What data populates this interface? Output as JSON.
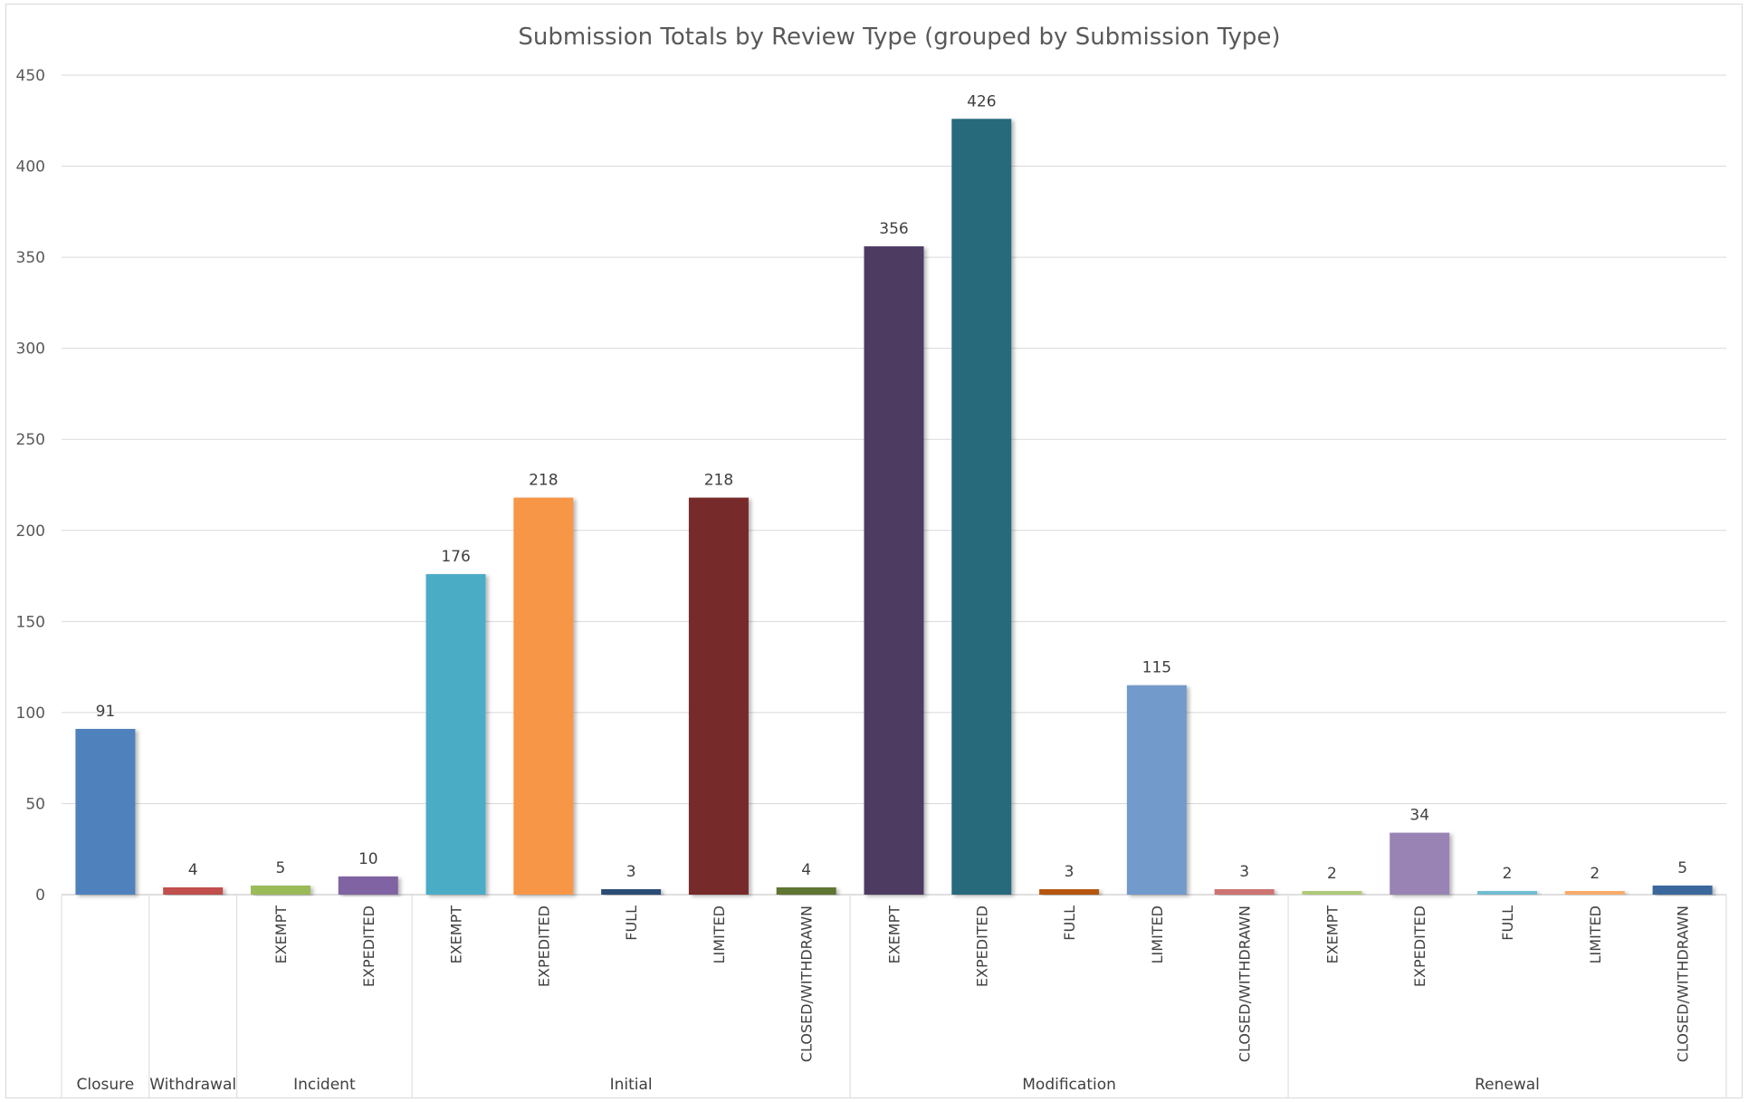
{
  "chart_data": {
    "type": "bar",
    "title": "Submission Totals by Review Type (grouped by Submission Type)",
    "xlabel": "",
    "ylabel": "",
    "ylim": [
      0,
      450
    ],
    "yticks": [
      0,
      50,
      100,
      150,
      200,
      250,
      300,
      350,
      400,
      450
    ],
    "grid": true,
    "legend": "none",
    "groups": [
      {
        "name": "Closure",
        "bars": [
          {
            "label": "",
            "value": 91,
            "color": "#4f81bd"
          }
        ]
      },
      {
        "name": "Withdrawal",
        "bars": [
          {
            "label": "",
            "value": 4,
            "color": "#c0504d"
          }
        ]
      },
      {
        "name": "Incident",
        "bars": [
          {
            "label": "EXEMPT",
            "value": 5,
            "color": "#9bbb59"
          },
          {
            "label": "EXPEDITED",
            "value": 10,
            "color": "#8064a2"
          }
        ]
      },
      {
        "name": "Initial",
        "bars": [
          {
            "label": "EXEMPT",
            "value": 176,
            "color": "#4bacc6"
          },
          {
            "label": "EXPEDITED",
            "value": 218,
            "color": "#f79646"
          },
          {
            "label": "FULL",
            "value": 3,
            "color": "#2c4d75"
          },
          {
            "label": "LIMITED",
            "value": 218,
            "color": "#772c2a"
          },
          {
            "label": "CLOSED/WITHDRAWN",
            "value": 4,
            "color": "#5f7530"
          }
        ]
      },
      {
        "name": "Modification",
        "bars": [
          {
            "label": "EXEMPT",
            "value": 356,
            "color": "#4d3b62"
          },
          {
            "label": "EXPEDITED",
            "value": 426,
            "color": "#276a7c"
          },
          {
            "label": "FULL",
            "value": 3,
            "color": "#b65708"
          },
          {
            "label": "LIMITED",
            "value": 115,
            "color": "#729aca"
          },
          {
            "label": "CLOSED/WITHDRAWN",
            "value": 3,
            "color": "#cd7371"
          }
        ]
      },
      {
        "name": "Renewal",
        "bars": [
          {
            "label": "EXEMPT",
            "value": 2,
            "color": "#afc97a"
          },
          {
            "label": "EXPEDITED",
            "value": 34,
            "color": "#9983b5"
          },
          {
            "label": "FULL",
            "value": 2,
            "color": "#6fbdd1"
          },
          {
            "label": "LIMITED",
            "value": 2,
            "color": "#f9ab6b"
          },
          {
            "label": "CLOSED/WITHDRAWN",
            "value": 5,
            "color": "#3a679c"
          }
        ]
      }
    ]
  }
}
